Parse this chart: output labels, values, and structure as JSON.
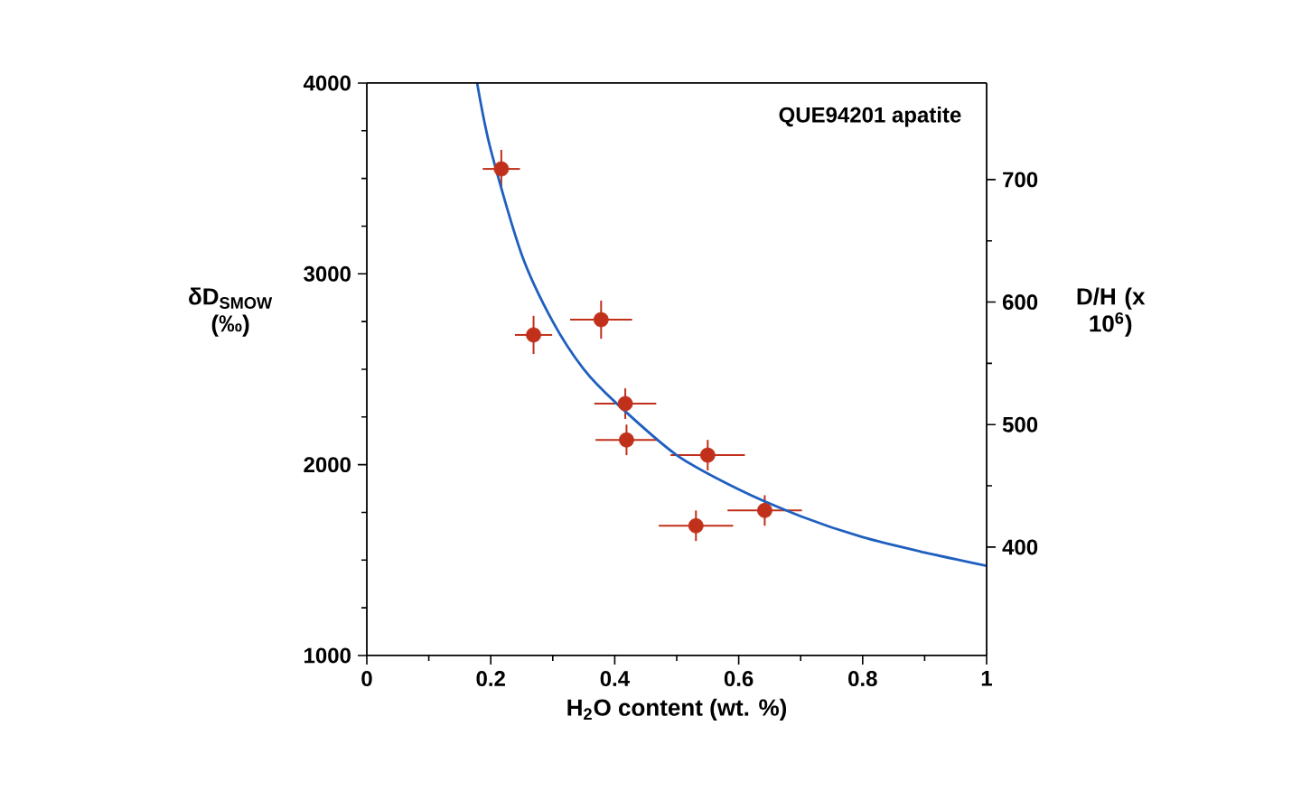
{
  "chart_data": {
    "type": "scatter",
    "xlabel": "H$_{2}$O content (wt. %)",
    "ylabel": "δD$_{SMOW}$ (‰)",
    "y2label": "D/H (x 10$^{6}$)",
    "xlim": [
      0,
      1
    ],
    "ylim": [
      1000,
      4000
    ],
    "y2lim": [
      311.5,
      778.8
    ],
    "xticks": [
      0,
      0.2,
      0.4,
      0.6,
      0.8,
      1
    ],
    "yticks": [
      1000,
      2000,
      3000,
      4000
    ],
    "y2ticks": [
      400,
      500,
      600,
      700
    ],
    "annotations": [
      "QUE94201 apatite"
    ],
    "grid": false,
    "series": [
      {
        "color": "#c0301a",
        "marker": "circle",
        "x": [
          0.217,
          0.269,
          0.378,
          0.417,
          0.419,
          0.55,
          0.642,
          0.531
        ],
        "values": [
          3550,
          2680,
          2760,
          2320,
          2130,
          2050,
          1760,
          1680
        ],
        "xerrors": [
          0.03,
          0.03,
          0.05,
          0.05,
          0.05,
          0.06,
          0.06,
          0.06
        ],
        "errors": [
          100,
          100,
          100,
          80,
          80,
          80,
          80,
          80
        ]
      },
      {
        "type": "line",
        "color": "#1f5fbf",
        "marker": "none",
        "line_style": "solid",
        "x": [
          0.178,
          0.2,
          0.25,
          0.3,
          0.35,
          0.4,
          0.5,
          0.6,
          0.7,
          0.8,
          0.9,
          1.0
        ],
        "values": [
          4000,
          3650,
          3100,
          2750,
          2500,
          2330,
          2050,
          1870,
          1730,
          1620,
          1540,
          1470
        ]
      }
    ]
  }
}
